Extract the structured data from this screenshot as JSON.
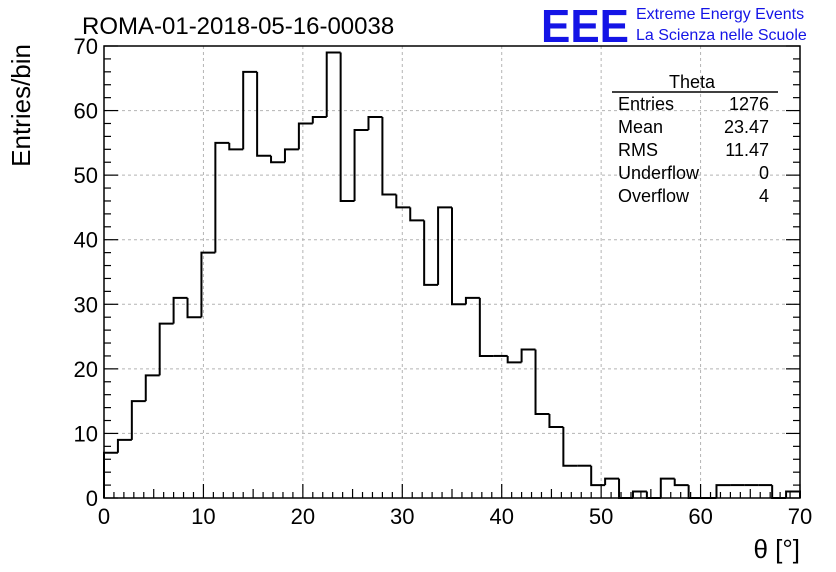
{
  "header": {
    "run_title": "ROMA-01-2018-05-16-00038",
    "logo": "EEE",
    "org_line1": "Extreme Energy Events",
    "org_line2": "La Scienza nelle Scuole"
  },
  "stats_box": {
    "name": "Theta",
    "rows": [
      {
        "label": "Entries",
        "value": "1276"
      },
      {
        "label": "Mean",
        "value": "23.47"
      },
      {
        "label": "RMS",
        "value": "11.47"
      },
      {
        "label": "Underflow",
        "value": "0"
      },
      {
        "label": "Overflow",
        "value": "4"
      }
    ]
  },
  "colors": {
    "logo": "#1414e6",
    "line": "#000000",
    "grid": "#b4b4b4"
  },
  "chart_data": {
    "type": "bar",
    "xlabel": "θ [°]",
    "ylabel": "Entries/bin",
    "xlim": [
      0,
      70
    ],
    "ylim": [
      0,
      70
    ],
    "bin_width": 1.4,
    "grid": true,
    "x_ticks": [
      0,
      10,
      20,
      30,
      40,
      50,
      60,
      70
    ],
    "y_ticks": [
      0,
      10,
      20,
      30,
      40,
      50,
      60,
      70
    ],
    "values": [
      7,
      9,
      15,
      19,
      27,
      31,
      28,
      38,
      55,
      54,
      66,
      53,
      52,
      54,
      58,
      59,
      69,
      46,
      57,
      59,
      47,
      45,
      43,
      33,
      45,
      30,
      31,
      22,
      22,
      21,
      23,
      13,
      11,
      5,
      5,
      2,
      3,
      0,
      1,
      0,
      3,
      2,
      0,
      0,
      2,
      2,
      2,
      2,
      0,
      1
    ]
  }
}
